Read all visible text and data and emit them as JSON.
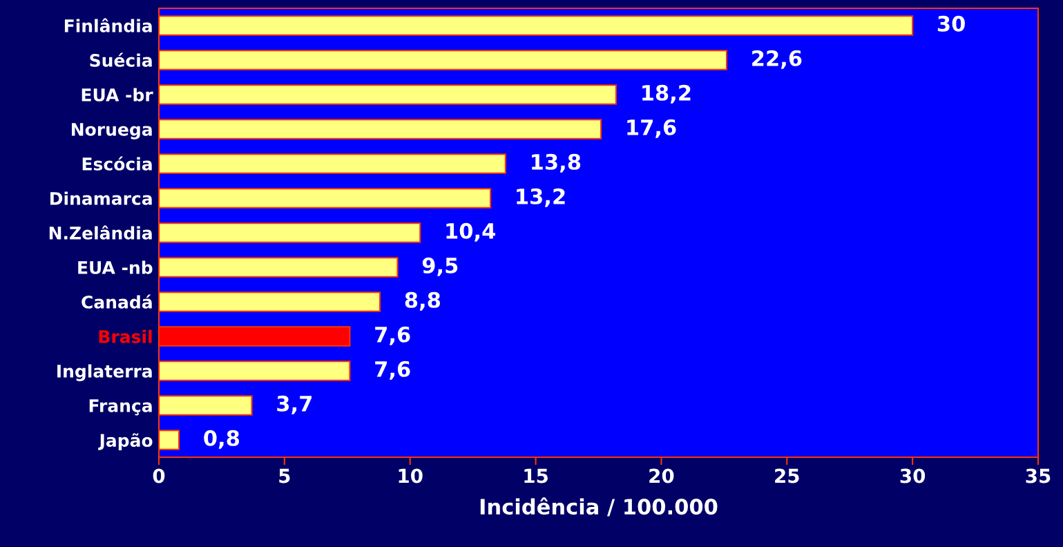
{
  "chart_data": {
    "type": "bar",
    "orientation": "horizontal",
    "xlabel": "Incidência / 100.000",
    "categories": [
      "Finlândia",
      "Suécia",
      "EUA -br",
      "Noruega",
      "Escócia",
      "Dinamarca",
      "N.Zelândia",
      "EUA -nb",
      "Canadá",
      "Brasil",
      "Inglaterra",
      "França",
      "Japão"
    ],
    "values": [
      30,
      22.6,
      18.2,
      17.6,
      13.8,
      13.2,
      10.4,
      9.5,
      8.8,
      7.6,
      7.6,
      3.7,
      0.8
    ],
    "value_labels": [
      "30",
      "22,6",
      "18,2",
      "17,6",
      "13,8",
      "13,2",
      "10,4",
      "9,5",
      "8,8",
      "7,6",
      "7,6",
      "3,7",
      "0,8"
    ],
    "colors": [
      "#ffff80",
      "#ffff80",
      "#ffff80",
      "#ffff80",
      "#ffff80",
      "#ffff80",
      "#ffff80",
      "#ffff80",
      "#ffff80",
      "#ff0000",
      "#ffff80",
      "#ffff80",
      "#ffff80"
    ],
    "xlim": [
      0,
      35
    ],
    "xticks": [
      0,
      5,
      10,
      15,
      20,
      25,
      30,
      35
    ],
    "grid": false,
    "legend": false
  }
}
